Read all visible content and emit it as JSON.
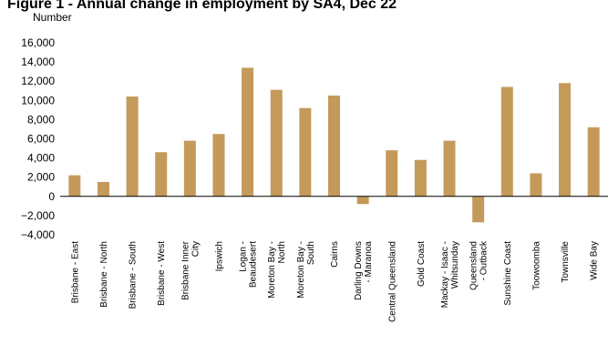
{
  "chart_data": {
    "type": "bar",
    "title": "Figure 1 - Annual change in employment by SA4, Dec 22",
    "ylabel": "Number",
    "xlabel": "",
    "ylim": [
      -4000,
      16000
    ],
    "yticks": [
      16000,
      14000,
      12000,
      10000,
      8000,
      6000,
      4000,
      2000,
      0,
      -2000,
      -4000
    ],
    "ytick_labels": [
      "16,000",
      "14,000",
      "12,000",
      "10,000",
      "8,000",
      "6,000",
      "4,000",
      "2,000",
      "0",
      "−2,000",
      "−4,000"
    ],
    "grid": false,
    "legend": "none",
    "bar_color": "#C49A5A",
    "categories": [
      [
        "Brisbane - East"
      ],
      [
        "Brisbane - North"
      ],
      [
        "Brisbane - South"
      ],
      [
        "Brisbane - West"
      ],
      [
        "Brisbane Inner",
        "City"
      ],
      [
        "Ipswich"
      ],
      [
        "Logan -",
        "Beaudesert"
      ],
      [
        "Moreton Bay -",
        "North"
      ],
      [
        "Moreton Bay -",
        "South"
      ],
      [
        "Cairns"
      ],
      [
        "Darling Downs",
        "- Maranoa"
      ],
      [
        "Central Queensland"
      ],
      [
        "Gold Coast"
      ],
      [
        "Mackay - Isaac -",
        "Whitsunday"
      ],
      [
        "Queensland",
        "- Outback"
      ],
      [
        "Sunshine Coast"
      ],
      [
        "Toowoomba"
      ],
      [
        "Townsville"
      ],
      [
        "Wide Bay"
      ]
    ],
    "values": [
      2200,
      1500,
      10400,
      4600,
      5800,
      6500,
      13400,
      11100,
      9200,
      10500,
      -800,
      4800,
      3800,
      5800,
      -2700,
      11400,
      2400,
      11800,
      7200
    ]
  }
}
